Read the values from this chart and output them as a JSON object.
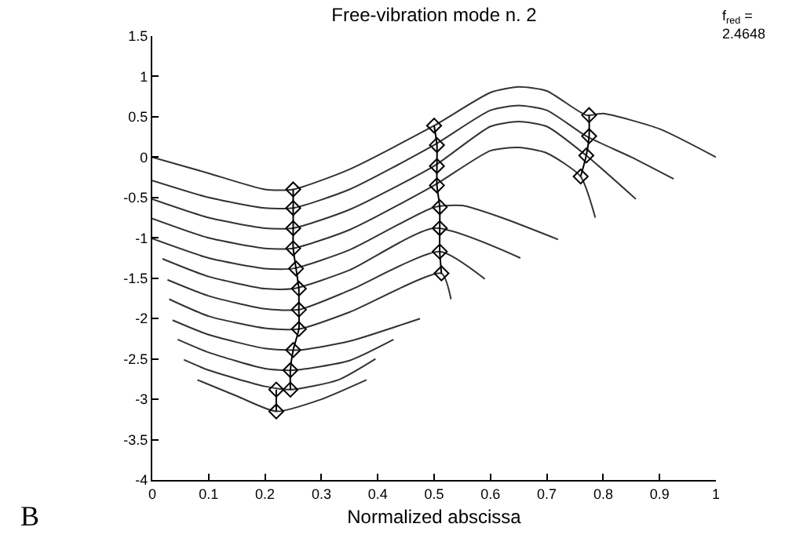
{
  "chart_data": {
    "type": "line",
    "title": "Free-vibration mode n. 2",
    "xlabel": "Normalized abscissa",
    "annotations": [
      "f$_{red}$ =\n2.4648",
      "B"
    ],
    "xlim": [
      0,
      1
    ],
    "xticks": [
      0,
      0.1,
      0.2,
      0.3,
      0.4,
      0.5,
      0.6,
      0.7,
      0.8,
      0.9,
      1
    ],
    "ylim": [
      -4,
      1.5
    ],
    "yticks": [
      -4,
      -3.5,
      -3,
      -2.5,
      -2,
      -1.5,
      -1,
      -0.5,
      0,
      0.5,
      1,
      1.5
    ],
    "marker": "none",
    "line_style": "solid",
    "series": [
      {
        "color": "#333333",
        "x": [
          0,
          0.1,
          0.2,
          0.25,
          0.35,
          0.5,
          0.6,
          0.65,
          0.7,
          0.77,
          0.8,
          0.9,
          1.0
        ],
        "values": [
          0,
          -0.2,
          -0.4,
          -0.4,
          -0.15,
          0.39,
          0.8,
          0.87,
          0.82,
          0.52,
          0.54,
          0.35,
          0
        ]
      },
      {
        "color": "#333333",
        "x": [
          0,
          0.1,
          0.2,
          0.25,
          0.35,
          0.5,
          0.6,
          0.65,
          0.7,
          0.77,
          0.85,
          0.925
        ],
        "values": [
          -0.29,
          -0.5,
          -0.63,
          -0.63,
          -0.4,
          0.15,
          0.58,
          0.64,
          0.58,
          0.26,
          0.0,
          -0.27
        ]
      },
      {
        "color": "#333333",
        "x": [
          0,
          0.1,
          0.2,
          0.25,
          0.35,
          0.5,
          0.6,
          0.65,
          0.7,
          0.77,
          0.858
        ],
        "values": [
          -0.52,
          -0.75,
          -0.88,
          -0.88,
          -0.65,
          -0.11,
          0.38,
          0.44,
          0.38,
          0.02,
          -0.52
        ]
      },
      {
        "color": "#333333",
        "x": [
          0,
          0.1,
          0.2,
          0.25,
          0.35,
          0.5,
          0.6,
          0.65,
          0.7,
          0.76,
          0.786
        ],
        "values": [
          -0.76,
          -1.0,
          -1.13,
          -1.13,
          -0.9,
          -0.35,
          0.08,
          0.12,
          0.05,
          -0.24,
          -0.75
        ]
      },
      {
        "color": "#333333",
        "x": [
          0,
          0.1,
          0.2,
          0.25,
          0.35,
          0.5,
          0.55,
          0.62,
          0.72
        ],
        "values": [
          -1.01,
          -1.25,
          -1.38,
          -1.38,
          -1.15,
          -0.62,
          -0.6,
          -0.75,
          -1.02
        ]
      },
      {
        "color": "#333333",
        "x": [
          0.018,
          0.1,
          0.2,
          0.25,
          0.35,
          0.5,
          0.653
        ],
        "values": [
          -1.26,
          -1.48,
          -1.63,
          -1.63,
          -1.4,
          -0.88,
          -1.25
        ]
      },
      {
        "color": "#333333",
        "x": [
          0.027,
          0.1,
          0.2,
          0.26,
          0.35,
          0.51,
          0.59
        ],
        "values": [
          -1.52,
          -1.72,
          -1.88,
          -1.89,
          -1.65,
          -1.17,
          -1.51
        ]
      },
      {
        "color": "#333333",
        "x": [
          0.03,
          0.1,
          0.2,
          0.26,
          0.35,
          0.513,
          0.53
        ],
        "values": [
          -1.76,
          -1.97,
          -2.12,
          -2.13,
          -1.92,
          -1.44,
          -1.76
        ]
      },
      {
        "color": "#333333",
        "x": [
          0.036,
          0.1,
          0.2,
          0.26,
          0.35,
          0.475
        ],
        "values": [
          -2.02,
          -2.2,
          -2.37,
          -2.39,
          -2.28,
          -2.0
        ]
      },
      {
        "color": "#333333",
        "x": [
          0.045,
          0.1,
          0.2,
          0.25,
          0.35,
          0.428
        ],
        "values": [
          -2.26,
          -2.42,
          -2.62,
          -2.64,
          -2.52,
          -2.26
        ]
      },
      {
        "color": "#333333",
        "x": [
          0.056,
          0.1,
          0.2,
          0.245,
          0.33,
          0.396
        ],
        "values": [
          -2.51,
          -2.64,
          -2.84,
          -2.88,
          -2.76,
          -2.5
        ]
      },
      {
        "color": "#333333",
        "x": [
          0.08,
          0.15,
          0.22,
          0.3,
          0.38
        ],
        "values": [
          -2.76,
          -2.96,
          -3.15,
          -3.0,
          -2.76
        ]
      },
      {
        "color": "#000000",
        "marker": "diamond",
        "x": [
          0.25,
          0.25,
          0.25,
          0.25,
          0.255,
          0.26,
          0.26,
          0.26,
          0.25,
          0.245,
          0.245
        ],
        "values": [
          -0.4,
          -0.63,
          -0.88,
          -1.13,
          -1.38,
          -1.63,
          -1.89,
          -2.13,
          -2.39,
          -2.64,
          -2.88
        ]
      },
      {
        "color": "#000000",
        "marker": "diamond",
        "x": [
          0.22,
          0.22
        ],
        "values": [
          -2.88,
          -3.15
        ]
      },
      {
        "color": "#000000",
        "marker": "diamond",
        "x": [
          0.5,
          0.505,
          0.505,
          0.505,
          0.51,
          0.51,
          0.51,
          0.513
        ],
        "values": [
          0.39,
          0.15,
          -0.11,
          -0.35,
          -0.62,
          -0.88,
          -1.17,
          -1.44
        ]
      },
      {
        "color": "#000000",
        "marker": "diamond",
        "x": [
          0.775,
          0.775,
          0.77,
          0.76
        ],
        "values": [
          0.52,
          0.26,
          0.02,
          -0.24
        ]
      }
    ]
  }
}
